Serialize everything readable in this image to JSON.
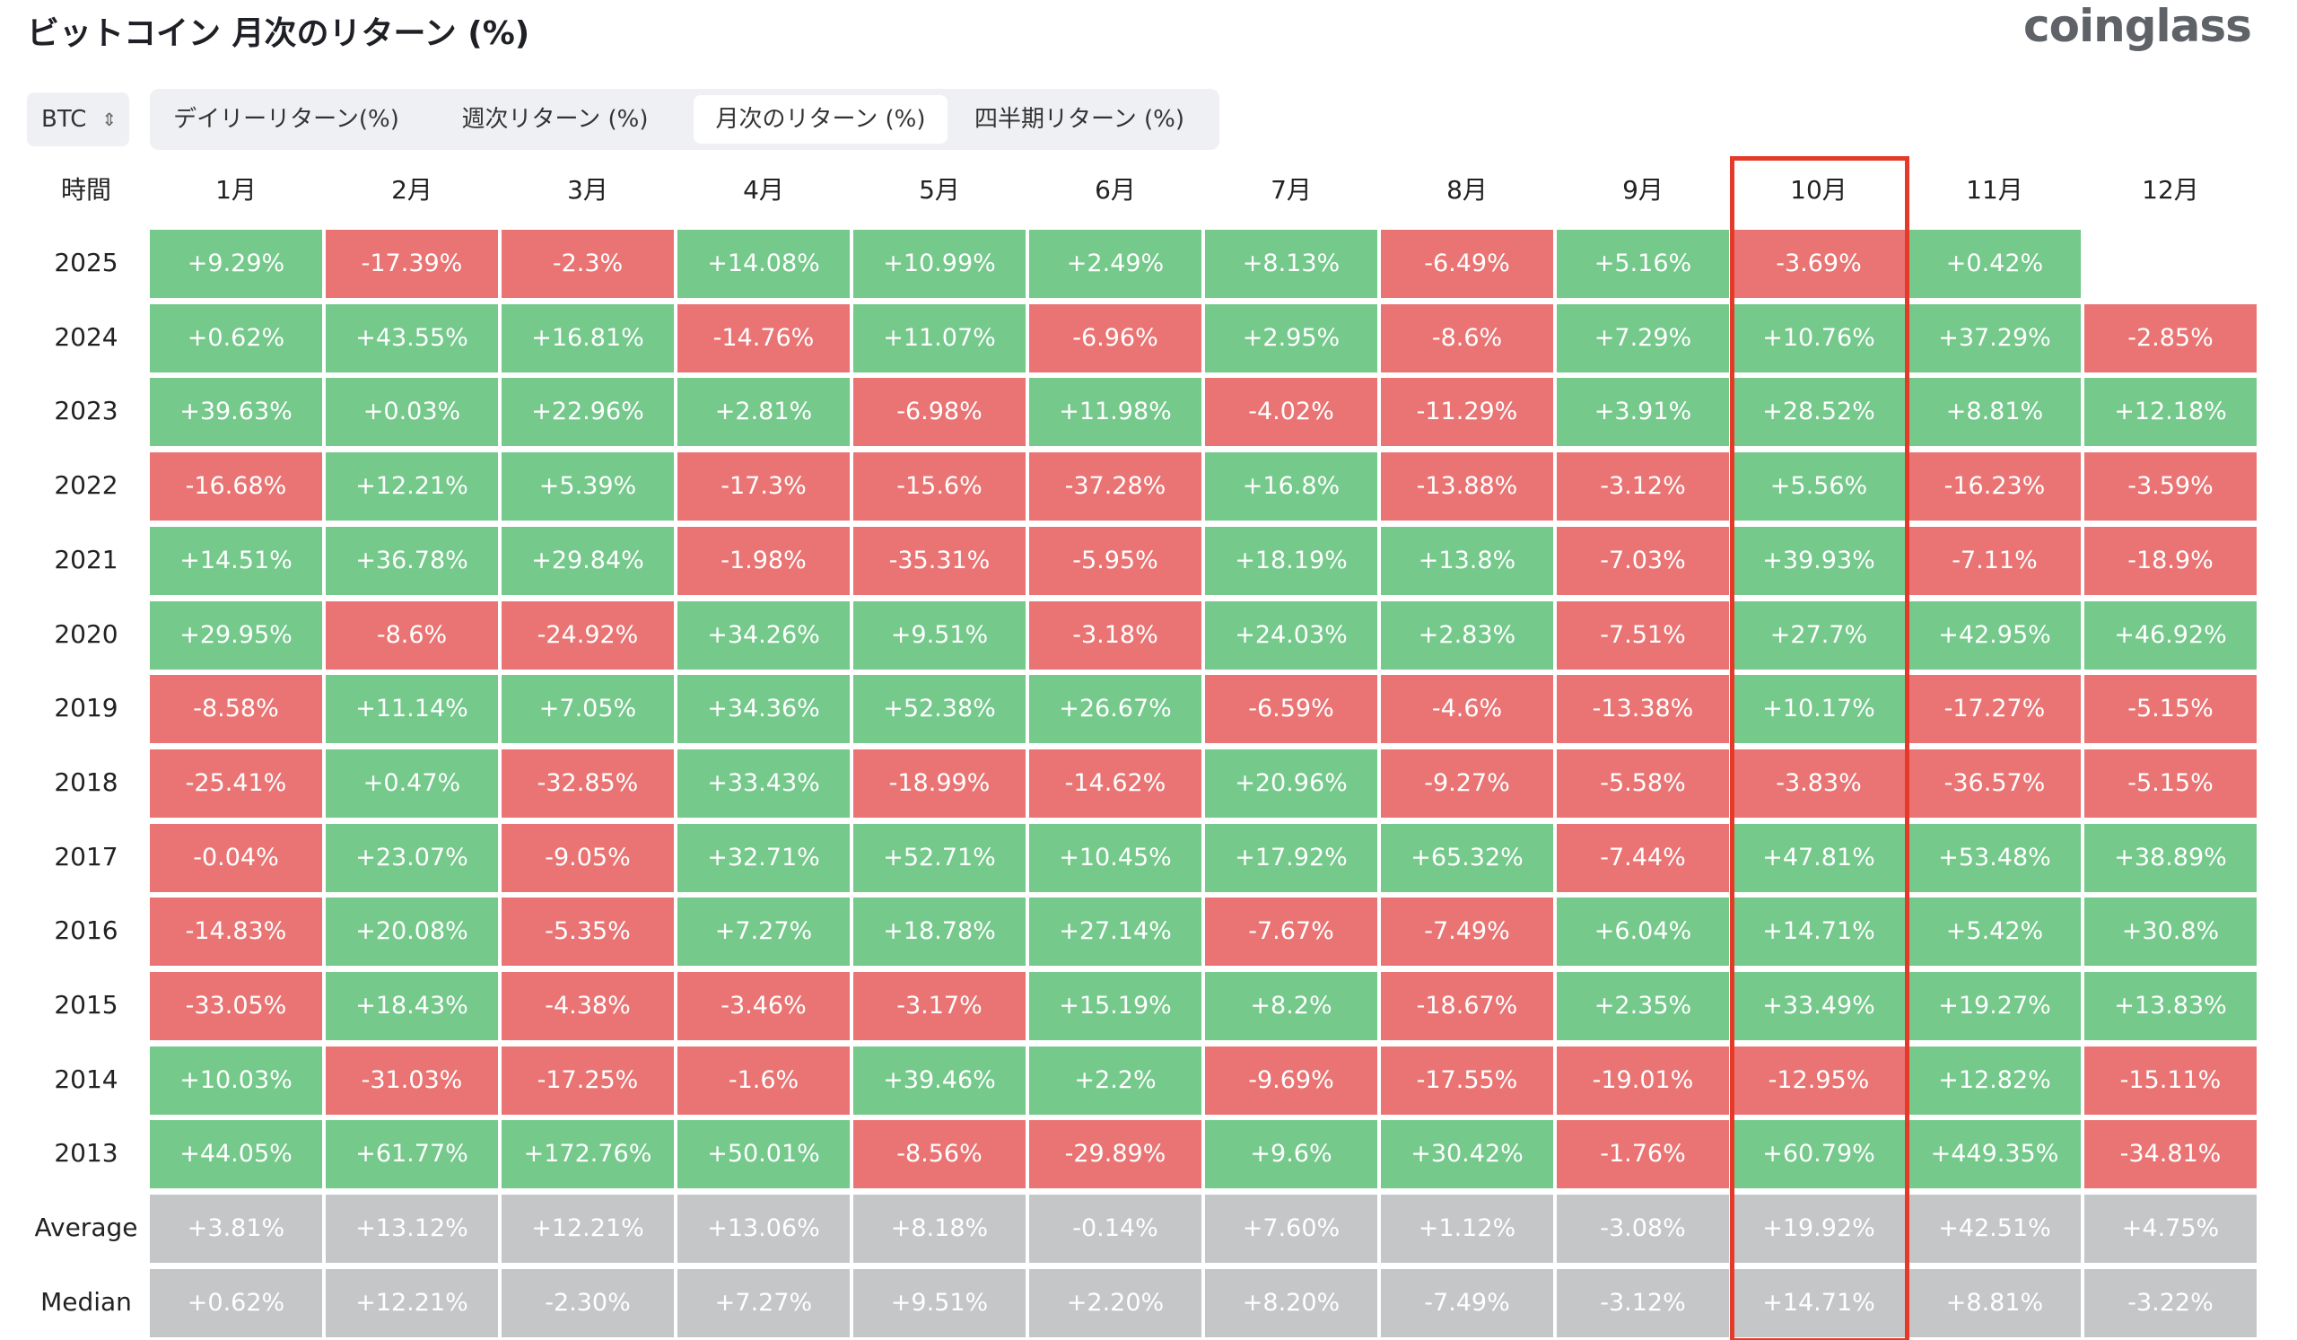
{
  "header": {
    "title": "ビットコイン 月次のリターン (%)",
    "logo": "coinglass"
  },
  "selector": "BTC",
  "tabs": [
    "デイリーリターン(%)",
    "週次リターン (%)",
    "月次のリターン (%)",
    "四半期リターン (%)"
  ],
  "table": {
    "columns": [
      "時間",
      "1月",
      "2月",
      "3月",
      "4月",
      "5月",
      "6月",
      "7月",
      "8月",
      "9月",
      "10月",
      "11月",
      "12月"
    ],
    "rows": [
      [
        "2025",
        "+9.29%",
        "-17.39%",
        "-2.3%",
        "+14.08%",
        "+10.99%",
        "+2.49%",
        "+8.13%",
        "-6.49%",
        "+5.16%",
        "-3.69%",
        "+0.42%",
        null
      ],
      [
        "2024",
        "+0.62%",
        "+43.55%",
        "+16.81%",
        "-14.76%",
        "+11.07%",
        "-6.96%",
        "+2.95%",
        "-8.6%",
        "+7.29%",
        "+10.76%",
        "+37.29%",
        "-2.85%"
      ],
      [
        "2023",
        "+39.63%",
        "+0.03%",
        "+22.96%",
        "+2.81%",
        "-6.98%",
        "+11.98%",
        "-4.02%",
        "-11.29%",
        "+3.91%",
        "+28.52%",
        "+8.81%",
        "+12.18%"
      ],
      [
        "2022",
        "-16.68%",
        "+12.21%",
        "+5.39%",
        "-17.3%",
        "-15.6%",
        "-37.28%",
        "+16.8%",
        "-13.88%",
        "-3.12%",
        "+5.56%",
        "-16.23%",
        "-3.59%"
      ],
      [
        "2021",
        "+14.51%",
        "+36.78%",
        "+29.84%",
        "-1.98%",
        "-35.31%",
        "-5.95%",
        "+18.19%",
        "+13.8%",
        "-7.03%",
        "+39.93%",
        "-7.11%",
        "-18.9%"
      ],
      [
        "2020",
        "+29.95%",
        "-8.6%",
        "-24.92%",
        "+34.26%",
        "+9.51%",
        "-3.18%",
        "+24.03%",
        "+2.83%",
        "-7.51%",
        "+27.7%",
        "+42.95%",
        "+46.92%"
      ],
      [
        "2019",
        "-8.58%",
        "+11.14%",
        "+7.05%",
        "+34.36%",
        "+52.38%",
        "+26.67%",
        "-6.59%",
        "-4.6%",
        "-13.38%",
        "+10.17%",
        "-17.27%",
        "-5.15%"
      ],
      [
        "2018",
        "-25.41%",
        "+0.47%",
        "-32.85%",
        "+33.43%",
        "-18.99%",
        "-14.62%",
        "+20.96%",
        "-9.27%",
        "-5.58%",
        "-3.83%",
        "-36.57%",
        "-5.15%"
      ],
      [
        "2017",
        "-0.04%",
        "+23.07%",
        "-9.05%",
        "+32.71%",
        "+52.71%",
        "+10.45%",
        "+17.92%",
        "+65.32%",
        "-7.44%",
        "+47.81%",
        "+53.48%",
        "+38.89%"
      ],
      [
        "2016",
        "-14.83%",
        "+20.08%",
        "-5.35%",
        "+7.27%",
        "+18.78%",
        "+27.14%",
        "-7.67%",
        "-7.49%",
        "+6.04%",
        "+14.71%",
        "+5.42%",
        "+30.8%"
      ],
      [
        "2015",
        "-33.05%",
        "+18.43%",
        "-4.38%",
        "-3.46%",
        "-3.17%",
        "+15.19%",
        "+8.2%",
        "-18.67%",
        "+2.35%",
        "+33.49%",
        "+19.27%",
        "+13.83%"
      ],
      [
        "2014",
        "+10.03%",
        "-31.03%",
        "-17.25%",
        "-1.6%",
        "+39.46%",
        "+2.2%",
        "-9.69%",
        "-17.55%",
        "-19.01%",
        "-12.95%",
        "+12.82%",
        "-15.11%"
      ],
      [
        "2013",
        "+44.05%",
        "+61.77%",
        "+172.76%",
        "+50.01%",
        "-8.56%",
        "-29.89%",
        "+9.6%",
        "+30.42%",
        "-1.76%",
        "+60.79%",
        "+449.35%",
        "-34.81%"
      ]
    ],
    "summary_rows": [
      [
        "Average",
        "+3.81%",
        "+13.12%",
        "+12.21%",
        "+13.06%",
        "+8.18%",
        "-0.14%",
        "+7.60%",
        "+1.12%",
        "-3.08%",
        "+19.92%",
        "+42.51%",
        "+4.75%"
      ],
      [
        "Median",
        "+0.62%",
        "+12.21%",
        "-2.30%",
        "+7.27%",
        "+9.51%",
        "+2.20%",
        "+8.20%",
        "-7.49%",
        "-3.12%",
        "+14.71%",
        "+8.81%",
        "-3.22%"
      ]
    ]
  }
}
